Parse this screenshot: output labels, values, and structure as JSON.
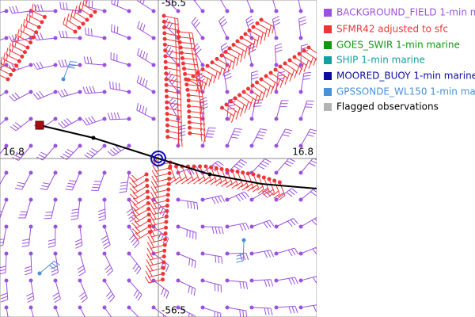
{
  "legend": {
    "items": [
      {
        "label": "BACKGROUND_FIELD 1-min m",
        "color": "#9b50e0"
      },
      {
        "label": "SFMR42 adjusted to sfc",
        "color": "#f03434"
      },
      {
        "label": "GOES_SWIR 1-min marine",
        "color": "#149614"
      },
      {
        "label": "SHIP 1-min marine",
        "color": "#14a0a0"
      },
      {
        "label": "MOORED_BUOY 1-min marine",
        "color": "#0c0ca0"
      },
      {
        "label": "GPSSONDE_WL150 1-min mar",
        "color": "#4a8fd8"
      },
      {
        "label": "Flagged observations",
        "color": "#b4b4b4"
      }
    ]
  },
  "axis_labels": {
    "lat_left": "16.8",
    "lat_right": "16.8",
    "lon_top": "-56.5",
    "lon_bottom": "-56.5"
  }
}
